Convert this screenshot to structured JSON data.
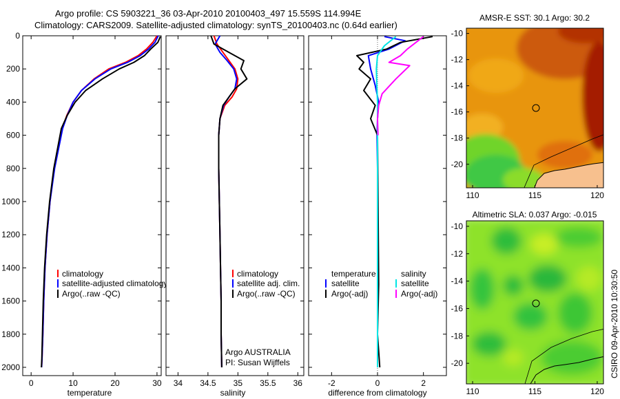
{
  "header": {
    "line1": "Argo profile: CS 5903221_36 03-Apr-2010 20100403_497 15.559S 114.994E",
    "line2": "Climatology: CARS2009. Satellite-adjusted climatology: synTS_20100403.nc (0.64d earlier)"
  },
  "footer": {
    "credit": "CSIRO 09-Apr-2010 10:30:50",
    "float_owner": "Argo AUSTRALIA",
    "pi": "PI: Susan Wijffels"
  },
  "colors": {
    "climatology": "#ff0000",
    "satellite": "#0000ff",
    "argo": "#000000",
    "salinity_satellite": "#00e5e5",
    "salinity_argo": "#ff00ff"
  },
  "chart_data": [
    {
      "type": "line",
      "id": "temperature_profile",
      "xlabel": "temperature",
      "ylabel": "",
      "xlim": [
        -2,
        31
      ],
      "ylim": [
        2050,
        0
      ],
      "xticks": [
        "0",
        "10",
        "20",
        "30"
      ],
      "yticks": [
        "0",
        "200",
        "400",
        "600",
        "800",
        "1000",
        "1200",
        "1400",
        "1600",
        "1800",
        "2000"
      ],
      "legend": [
        "climatology",
        "satellite-adjusted climatology",
        "Argo(..raw -QC)"
      ],
      "series": [
        {
          "name": "climatology",
          "color": "#ff0000",
          "x": [
            30,
            29,
            27.5,
            25.5,
            22.5,
            18.5,
            15,
            12,
            10,
            8.5,
            7.4,
            5.5,
            4.5,
            3.8,
            3.3,
            3,
            2.8,
            2.6,
            2.5
          ],
          "y": [
            0,
            40,
            80,
            120,
            160,
            200,
            260,
            330,
            400,
            480,
            560,
            800,
            1000,
            1200,
            1400,
            1600,
            1800,
            1950,
            2000
          ]
        },
        {
          "name": "satellite-adjusted climatology",
          "color": "#0000ff",
          "x": [
            30.3,
            29.5,
            28,
            26,
            23,
            19,
            15.2,
            12,
            10,
            8.6,
            7.5,
            5.6,
            4.5,
            3.8,
            3.3,
            3,
            2.8,
            2.6,
            2.5
          ],
          "y": [
            0,
            40,
            80,
            120,
            160,
            200,
            260,
            330,
            400,
            480,
            560,
            800,
            1000,
            1200,
            1400,
            1600,
            1800,
            1950,
            2000
          ]
        },
        {
          "name": "Argo(..raw -QC)",
          "color": "#000000",
          "x": [
            30.8,
            30.2,
            28.5,
            27,
            24.5,
            21,
            17,
            13,
            10.5,
            8.6,
            7.2,
            5.4,
            4.4,
            3.7,
            3.2,
            2.9,
            2.7,
            2.55,
            2.45
          ],
          "y": [
            5,
            40,
            80,
            120,
            160,
            200,
            260,
            330,
            400,
            480,
            560,
            800,
            1000,
            1200,
            1400,
            1600,
            1800,
            1950,
            2000
          ]
        }
      ]
    },
    {
      "type": "line",
      "id": "salinity_profile",
      "xlabel": "salinity",
      "xlim": [
        33.8,
        36.1
      ],
      "ylim": [
        2050,
        0
      ],
      "xticks": [
        "34",
        "34.5",
        "35",
        "35.5",
        "36"
      ],
      "legend": [
        "climatology",
        "satellite adj. clim.",
        "Argo(..raw -QC)"
      ],
      "series": [
        {
          "name": "climatology",
          "color": "#ff0000",
          "x": [
            34.6,
            34.65,
            34.75,
            34.85,
            34.95,
            35.0,
            34.98,
            34.9,
            34.78,
            34.7,
            34.68,
            34.68,
            34.69,
            34.7,
            34.71,
            34.72,
            34.72,
            34.73
          ],
          "y": [
            0,
            50,
            100,
            150,
            200,
            260,
            320,
            370,
            420,
            500,
            600,
            800,
            1000,
            1200,
            1400,
            1600,
            1800,
            2000
          ]
        },
        {
          "name": "satellite adj. clim.",
          "color": "#0000ff",
          "x": [
            34.7,
            34.62,
            34.7,
            34.82,
            34.93,
            34.98,
            34.95,
            34.85,
            34.76,
            34.7,
            34.68,
            34.68,
            34.69,
            34.7,
            34.71,
            34.72,
            34.72,
            34.73
          ],
          "y": [
            0,
            50,
            100,
            150,
            200,
            260,
            320,
            370,
            420,
            500,
            600,
            800,
            1000,
            1200,
            1400,
            1600,
            1800,
            2000
          ]
        },
        {
          "name": "Argo(..raw -QC)",
          "color": "#000000",
          "x": [
            34.55,
            34.6,
            34.85,
            35.1,
            35.05,
            35.15,
            34.95,
            34.85,
            34.75,
            34.7,
            34.68,
            34.68,
            34.69,
            34.7,
            34.71,
            34.72,
            34.72,
            34.73
          ],
          "y": [
            0,
            50,
            100,
            150,
            200,
            260,
            320,
            370,
            420,
            500,
            600,
            800,
            1000,
            1200,
            1400,
            1600,
            1800,
            2000
          ]
        }
      ]
    },
    {
      "type": "line",
      "id": "difference_from_climatology",
      "xlabel": "difference from climatology",
      "xlim": [
        -3,
        3
      ],
      "ylim": [
        2050,
        0
      ],
      "xticks": [
        "-2",
        "0",
        "2"
      ],
      "legend_titles": [
        "temperature",
        "salinity"
      ],
      "legend": [
        "satellite",
        "Argo(-adj)",
        "satellite",
        "Argo(-adj)"
      ],
      "series": [
        {
          "name": "temperature satellite",
          "color": "#0000ff",
          "x": [
            0.3,
            1.2,
            0.5,
            -0.4,
            -0.3,
            -0.1,
            0.05,
            0,
            -0.02,
            0,
            0,
            0,
            0,
            0
          ],
          "y": [
            5,
            30,
            80,
            120,
            200,
            300,
            400,
            500,
            600,
            800,
            1000,
            1400,
            1800,
            2000
          ]
        },
        {
          "name": "temperature Argo(-adj)",
          "color": "#000000",
          "x": [
            2.4,
            1.0,
            0.4,
            -0.9,
            -0.6,
            -0.8,
            -0.3,
            -0.6,
            -0.1,
            -0.3,
            0,
            0.05,
            0,
            0.1
          ],
          "y": [
            5,
            40,
            80,
            120,
            160,
            200,
            260,
            330,
            420,
            500,
            600,
            1500,
            1800,
            2000
          ]
        },
        {
          "name": "salinity satellite",
          "color": "#00e5e5",
          "x": [
            0.8,
            0.3,
            0.0,
            -0.05,
            -0.03,
            0,
            0,
            0,
            0,
            0,
            0
          ],
          "y": [
            5,
            60,
            120,
            200,
            300,
            400,
            500,
            800,
            1200,
            1600,
            2000
          ]
        },
        {
          "name": "salinity Argo(-adj)",
          "color": "#ff00ff",
          "x": [
            2.0,
            1.3,
            1.0,
            0.5,
            1.4,
            0.8,
            0.2,
            0.05,
            0,
            0.02
          ],
          "y": [
            5,
            80,
            120,
            160,
            180,
            260,
            350,
            420,
            500,
            600
          ]
        }
      ]
    },
    {
      "type": "heatmap",
      "id": "sst_map",
      "title": "AMSR-E SST: 30.1 Argo: 30.2",
      "xlim": [
        109.5,
        120.5
      ],
      "ylim": [
        -21.8,
        -9.6
      ],
      "xticks": [
        "110",
        "115",
        "120"
      ],
      "yticks": [
        "-10",
        "-12",
        "-14",
        "-16",
        "-18",
        "-20"
      ],
      "marker": {
        "lon": 114.994,
        "lat": -15.559
      }
    },
    {
      "type": "heatmap",
      "id": "sla_map",
      "title": "Altimetric SLA: 0.037 Argo: -0.015",
      "xlim": [
        109.5,
        120.5
      ],
      "ylim": [
        -21.5,
        -9.6
      ],
      "xticks": [
        "110",
        "115",
        "120"
      ],
      "yticks": [
        "-10",
        "-12",
        "-14",
        "-16",
        "-18",
        "-20"
      ],
      "marker": {
        "lon": 114.994,
        "lat": -15.559
      }
    }
  ]
}
